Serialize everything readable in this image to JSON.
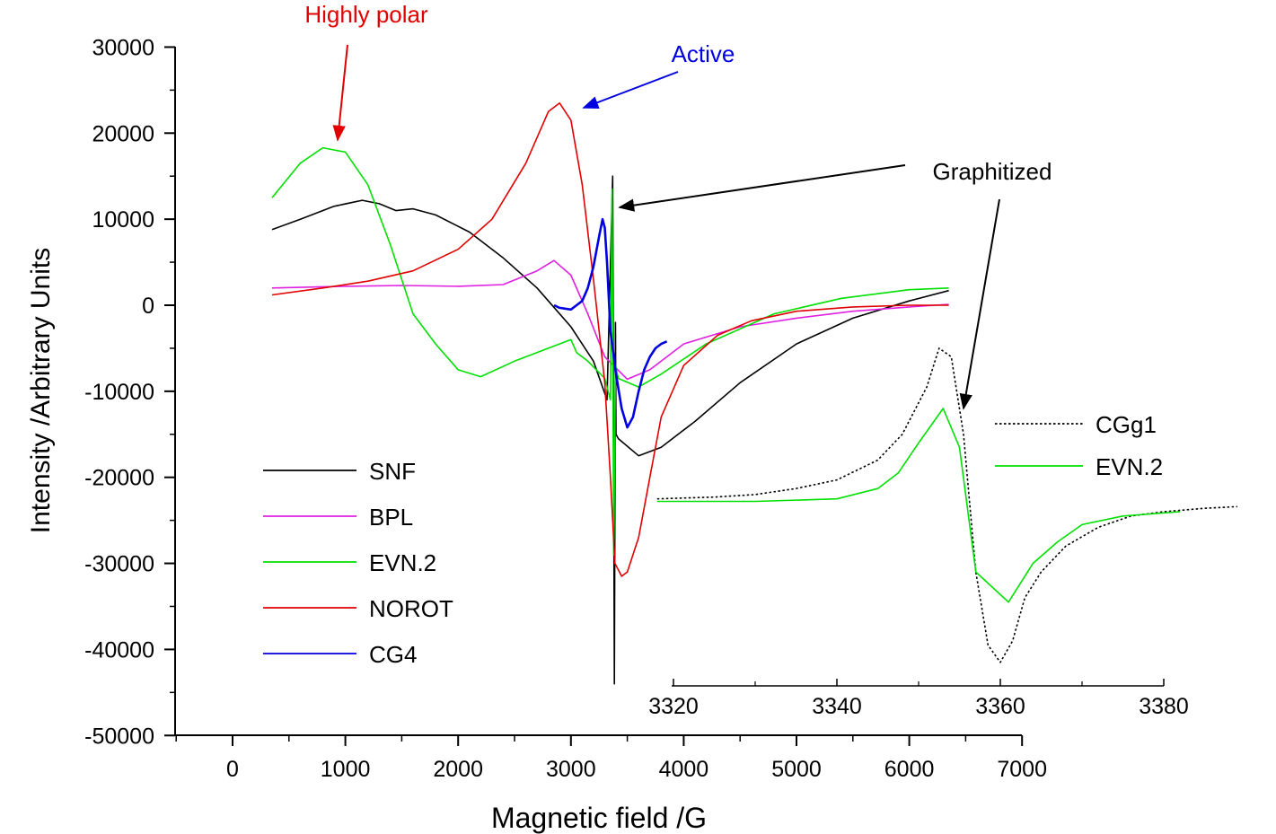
{
  "chart_data": [
    {
      "type": "line",
      "title": "",
      "xlabel": "Magnetic field /G",
      "ylabel": "Intensity /Arbitrary Units",
      "xlim": [
        -500,
        7000
      ],
      "ylim": [
        -50000,
        30000
      ],
      "xticks": [
        0,
        1000,
        2000,
        3000,
        4000,
        5000,
        6000,
        7000
      ],
      "yticks": [
        30000,
        20000,
        10000,
        0,
        -10000,
        -20000,
        -30000,
        -40000,
        -50000
      ],
      "xtick_labels": [
        "0",
        "1000",
        "2000",
        "3000",
        "4000",
        "5000",
        "6000",
        "7000"
      ],
      "ytick_labels": [
        "30000",
        "20000",
        "10000",
        "0",
        "-10000",
        "-20000",
        "-30000",
        "-40000",
        "-50000"
      ],
      "legend_position": "lower-left",
      "annotations": [
        {
          "text": "Highly polar",
          "color": "#e00000"
        },
        {
          "text": "Active",
          "color": "#0000e0"
        },
        {
          "text": "Graphitized",
          "color": "#000000"
        }
      ],
      "series": [
        {
          "name": "SNF",
          "color": "#000000",
          "x": [
            350,
            600,
            900,
            1150,
            1300,
            1450,
            1600,
            1800,
            2100,
            2400,
            2700,
            3000,
            3200,
            3320,
            3370,
            3385,
            3395,
            3400,
            3420,
            3600,
            3800,
            4100,
            4500,
            5000,
            5500,
            6000,
            6350
          ],
          "y": [
            8800,
            10000,
            11500,
            12200,
            11800,
            11000,
            11200,
            10500,
            8500,
            5500,
            2000,
            -2500,
            -6500,
            -11000,
            15000,
            -44000,
            -2000,
            -15000,
            -15500,
            -17500,
            -16500,
            -13500,
            -9000,
            -4500,
            -1500,
            500,
            1700
          ]
        },
        {
          "name": "BPL",
          "color": "#e020e0",
          "x": [
            350,
            1000,
            1500,
            2000,
            2400,
            2700,
            2850,
            3000,
            3150,
            3300,
            3500,
            3700,
            4000,
            4500,
            5000,
            5500,
            6000,
            6350
          ],
          "y": [
            2000,
            2200,
            2300,
            2200,
            2400,
            4000,
            5200,
            3500,
            -1000,
            -6000,
            -8600,
            -7500,
            -4500,
            -2500,
            -1500,
            -700,
            -200,
            100
          ]
        },
        {
          "name": "EVN.2",
          "color": "#00e000",
          "x": [
            350,
            600,
            800,
            1000,
            1200,
            1400,
            1600,
            1800,
            2000,
            2200,
            2500,
            2800,
            3000,
            3050,
            3150,
            3300,
            3350,
            3365,
            3380,
            3395,
            3420,
            3600,
            3800,
            4200,
            4800,
            5400,
            6000,
            6350
          ],
          "y": [
            12500,
            16500,
            18300,
            17800,
            14000,
            7000,
            -1000,
            -4500,
            -7500,
            -8300,
            -6500,
            -5000,
            -4000,
            -5500,
            -6500,
            -8500,
            -11000,
            13500,
            -29000,
            -7000,
            -8500,
            -9500,
            -8000,
            -4500,
            -1000,
            800,
            1800,
            2000
          ]
        },
        {
          "name": "NOROT",
          "color": "#e00000",
          "x": [
            350,
            800,
            1200,
            1600,
            2000,
            2300,
            2600,
            2800,
            2900,
            3000,
            3100,
            3200,
            3300,
            3350,
            3390,
            3450,
            3500,
            3600,
            3700,
            3800,
            4000,
            4300,
            4600,
            5000,
            5500,
            6000,
            6350
          ],
          "y": [
            1200,
            2000,
            2800,
            4000,
            6500,
            10000,
            16500,
            22500,
            23500,
            21500,
            14000,
            3000,
            -9000,
            -20000,
            -30000,
            -31500,
            -31000,
            -27000,
            -20000,
            -13000,
            -7000,
            -3500,
            -1800,
            -700,
            -200,
            0,
            0
          ]
        },
        {
          "name": "CG4",
          "color": "#0000e0",
          "x": [
            2850,
            2900,
            3000,
            3050,
            3100,
            3150,
            3200,
            3250,
            3280,
            3300,
            3320,
            3350,
            3400,
            3450,
            3500,
            3550,
            3600,
            3650,
            3700,
            3750,
            3800,
            3850
          ],
          "y": [
            0,
            -300,
            -500,
            0,
            500,
            2000,
            4500,
            8000,
            10000,
            9000,
            5000,
            -3000,
            -8000,
            -12000,
            -14200,
            -13000,
            -10000,
            -7500,
            -6000,
            -5000,
            -4500,
            -4200
          ]
        }
      ]
    },
    {
      "type": "line",
      "title": "",
      "xlabel": "",
      "ylabel": "",
      "xlim": [
        3320,
        3380
      ],
      "xticks": [
        3320,
        3340,
        3360,
        3380
      ],
      "xtick_labels": [
        "3320",
        "3340",
        "3360",
        "3380"
      ],
      "legend_position": "right",
      "series": [
        {
          "name": "CGg1",
          "color": "#000000",
          "dash": "dotted",
          "x": [
            3318,
            3325,
            3330,
            3335,
            3340,
            3345,
            3348,
            3351,
            3352.5,
            3354,
            3355.5,
            3357,
            3358.5,
            3360,
            3361.5,
            3363,
            3365,
            3368,
            3372,
            3376,
            3380,
            3385,
            3389
          ],
          "y": [
            -22.5,
            -22.3,
            -22.0,
            -21.3,
            -20.3,
            -18.0,
            -15.0,
            -9.5,
            -5.0,
            -6.0,
            -15.0,
            -31.0,
            -39.5,
            -41.5,
            -39.0,
            -34.0,
            -31.0,
            -28.0,
            -25.8,
            -24.5,
            -24.0,
            -23.6,
            -23.4
          ]
        },
        {
          "name": "EVN.2",
          "color": "#00e000",
          "x": [
            3318,
            3330,
            3340,
            3345,
            3347.5,
            3350,
            3353,
            3355,
            3357,
            3361,
            3364,
            3367,
            3370,
            3375,
            3382
          ],
          "y": [
            -22.8,
            -22.8,
            -22.5,
            -21.3,
            -19.5,
            -16.0,
            -12.0,
            -16.5,
            -31.0,
            -34.5,
            -30.0,
            -27.5,
            -25.5,
            -24.5,
            -24.0
          ]
        }
      ]
    }
  ]
}
